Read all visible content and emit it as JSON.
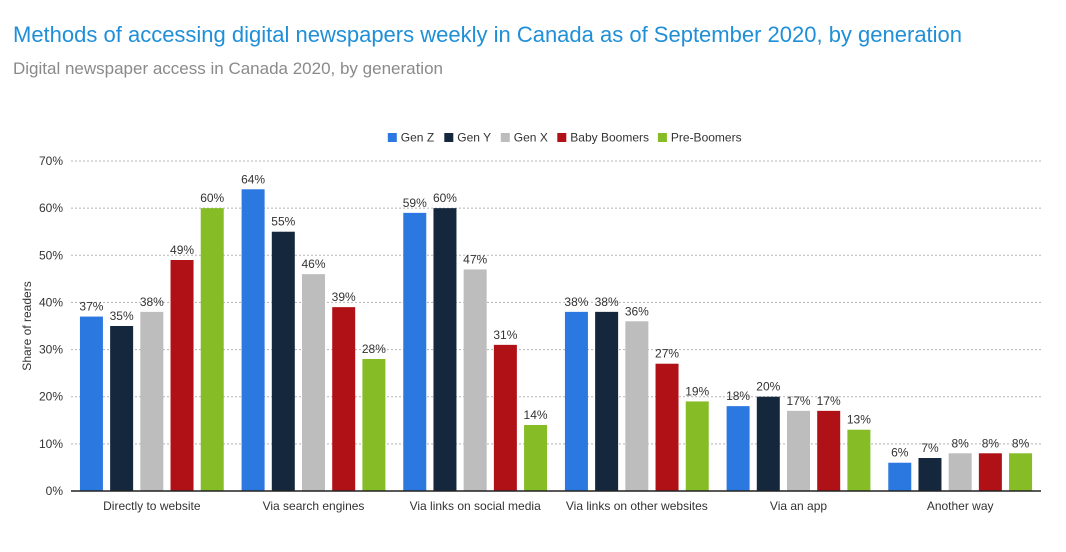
{
  "header": {
    "title": "Methods of accessing digital newspapers weekly in Canada as of September 2020, by generation",
    "subtitle": "Digital newspaper access in Canada 2020, by generation"
  },
  "chart_data": {
    "type": "bar",
    "categories": [
      "Directly to website",
      "Via search engines",
      "Via links on social media",
      "Via links on other websites",
      "Via an app",
      "Another way"
    ],
    "series": [
      {
        "name": "Gen Z",
        "color": "#2b78e0",
        "values": [
          37,
          64,
          59,
          38,
          18,
          6
        ]
      },
      {
        "name": "Gen Y",
        "color": "#14273d",
        "values": [
          35,
          55,
          60,
          38,
          20,
          7
        ]
      },
      {
        "name": "Gen X",
        "color": "#bdbdbd",
        "values": [
          38,
          46,
          47,
          36,
          17,
          8
        ]
      },
      {
        "name": "Baby Boomers",
        "color": "#b01116",
        "values": [
          49,
          39,
          31,
          27,
          17,
          8
        ]
      },
      {
        "name": "Pre-Boomers",
        "color": "#86bc25",
        "values": [
          60,
          28,
          14,
          19,
          13,
          8
        ]
      }
    ],
    "ylabel": "Share of readers",
    "ylim": [
      0,
      70
    ],
    "yticks": [
      0,
      10,
      20,
      30,
      40,
      50,
      60,
      70
    ],
    "value_suffix": "%",
    "grid": true,
    "legend_position": "top-center"
  }
}
